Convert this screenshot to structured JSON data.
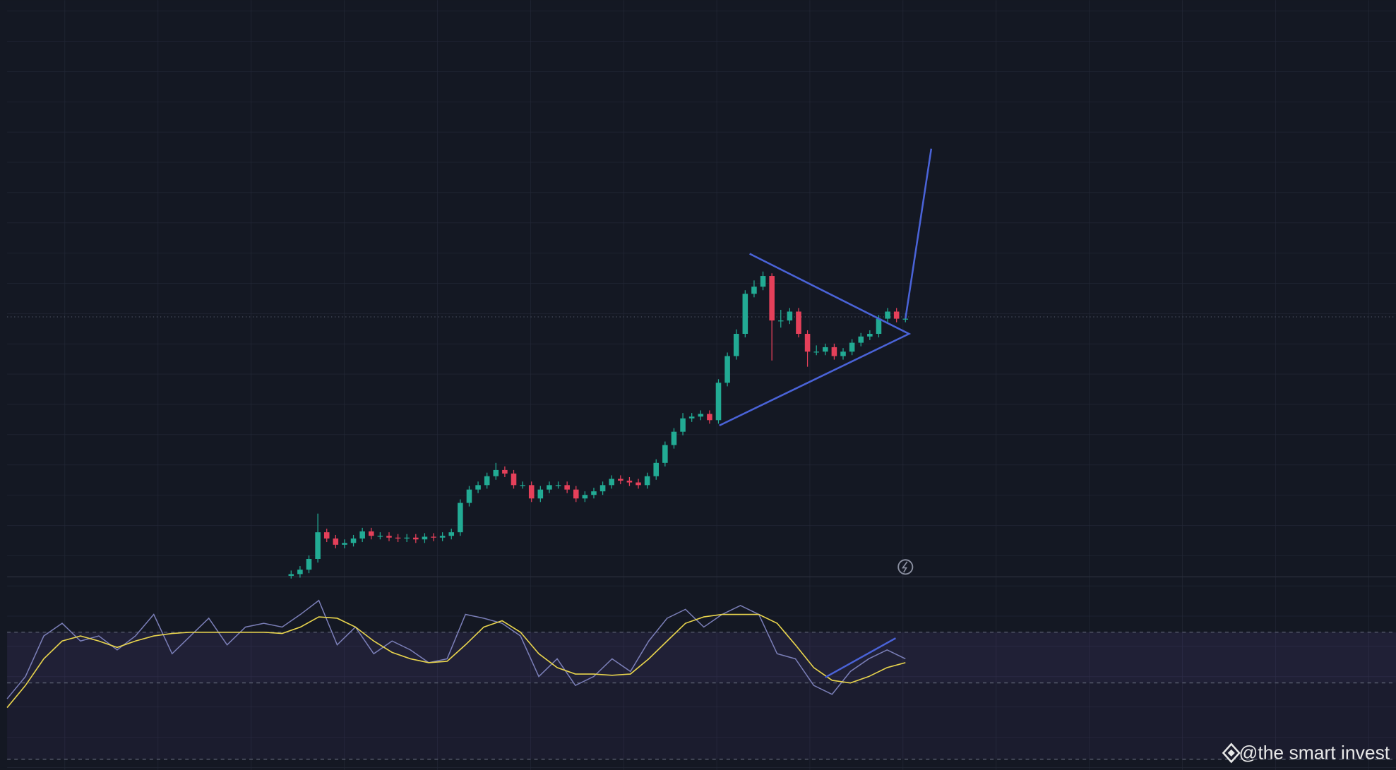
{
  "watermark": "@the smart invest",
  "chart_data": [
    {
      "type": "candlestick",
      "up_color": "#22ab94",
      "down_color": "#e5405a",
      "ylim": [
        0,
        648
      ],
      "series": {
        "open": [
          1,
          3,
          8,
          20,
          50,
          43,
          36,
          38,
          43,
          51,
          46,
          46,
          44,
          43,
          44,
          42,
          45,
          44,
          46,
          50,
          83,
          98,
          103,
          113,
          120,
          116,
          103,
          103,
          88,
          98,
          103,
          103,
          98,
          88,
          92,
          96,
          103,
          110,
          108,
          106,
          103,
          113,
          128,
          148,
          163,
          178,
          180,
          183,
          176,
          218,
          248,
          273,
          318,
          326,
          338,
          288,
          288,
          298,
          273,
          253,
          253,
          258,
          248,
          253,
          263,
          270,
          273,
          290,
          298,
          290
        ],
        "high": [
          7,
          12,
          24,
          71,
          54,
          47,
          42,
          47,
          55,
          55,
          50,
          50,
          48,
          48,
          48,
          49,
          49,
          50,
          54,
          87,
          102,
          107,
          117,
          128,
          124,
          120,
          107,
          107,
          102,
          107,
          107,
          107,
          102,
          96,
          100,
          107,
          114,
          114,
          112,
          110,
          117,
          132,
          152,
          167,
          184,
          184,
          187,
          187,
          222,
          252,
          278,
          322,
          333,
          343,
          341,
          300,
          302,
          302,
          277,
          260,
          262,
          262,
          257,
          267,
          274,
          277,
          294,
          302,
          302,
          296
        ],
        "low": [
          -2,
          -1,
          4,
          16,
          39,
          32,
          32,
          34,
          39,
          42,
          42,
          40,
          39,
          39,
          38,
          38,
          40,
          40,
          42,
          46,
          79,
          94,
          99,
          109,
          112,
          99,
          99,
          84,
          84,
          94,
          99,
          94,
          84,
          84,
          88,
          92,
          99,
          104,
          102,
          99,
          99,
          109,
          124,
          144,
          159,
          174,
          176,
          172,
          172,
          214,
          244,
          269,
          314,
          322,
          243,
          280,
          284,
          269,
          236,
          249,
          249,
          244,
          244,
          249,
          259,
          266,
          269,
          286,
          286,
          286
        ],
        "close": [
          3,
          8,
          20,
          50,
          43,
          36,
          38,
          43,
          51,
          46,
          46,
          44,
          43,
          44,
          42,
          45,
          44,
          46,
          50,
          83,
          98,
          103,
          113,
          120,
          116,
          103,
          103,
          88,
          98,
          103,
          103,
          98,
          88,
          92,
          96,
          103,
          110,
          108,
          106,
          103,
          113,
          128,
          148,
          163,
          178,
          180,
          183,
          176,
          218,
          248,
          273,
          318,
          326,
          338,
          288,
          288,
          298,
          273,
          253,
          253,
          258,
          248,
          253,
          263,
          270,
          273,
          290,
          298,
          290,
          290
        ]
      }
    },
    {
      "type": "line",
      "ylim": [
        0,
        100
      ],
      "bands": [
        30,
        70
      ],
      "band_color": "#7e57c2",
      "series": [
        {
          "name": "RSI",
          "color": "#7b7fb8",
          "values": [
            17.5,
            35,
            67,
            77,
            63,
            67,
            56,
            67,
            84,
            53,
            67,
            81,
            60,
            74,
            77,
            74,
            84,
            95,
            60,
            74,
            53,
            63,
            56,
            46,
            49,
            84,
            81,
            77,
            67,
            35,
            49,
            28,
            35,
            49,
            39,
            63,
            81,
            88,
            74,
            84,
            91,
            84,
            53,
            49,
            28,
            21,
            39,
            49,
            56,
            49
          ]
        },
        {
          "name": "RSI MA",
          "color": "#e8d44d",
          "values": [
            10.5,
            28,
            49,
            63,
            67,
            63,
            58,
            63,
            67,
            69,
            70,
            70,
            70,
            70,
            70,
            69,
            74,
            82,
            81,
            74,
            63,
            54,
            49,
            46,
            47,
            60,
            74,
            79,
            70,
            53,
            42,
            37,
            37,
            36,
            37,
            49,
            63,
            77,
            82,
            84,
            84,
            84,
            77,
            60,
            42,
            32,
            30,
            35,
            42,
            46
          ]
        }
      ]
    }
  ]
}
